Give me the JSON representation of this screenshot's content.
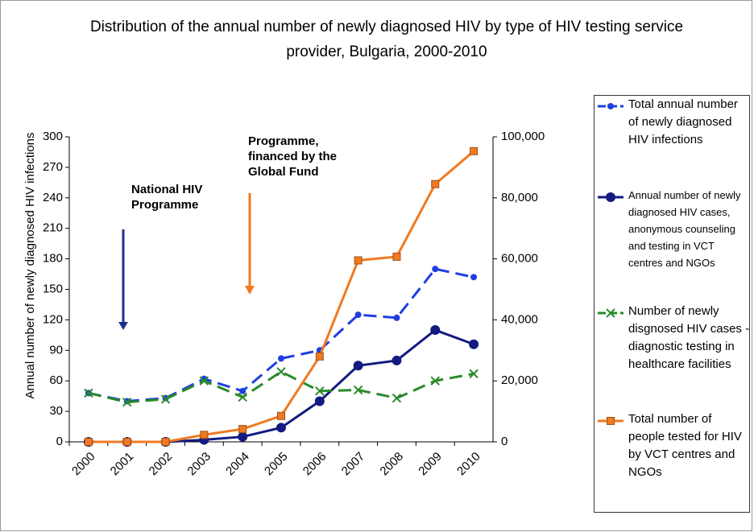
{
  "chart_data": {
    "type": "line",
    "title": "Distribution of the annual number of newly diagnosed HIV  by type of HIV testing service provider, Bulgaria, 2000-2010",
    "y_label": "Annual number of newly diagnosed HIV infections",
    "categories": [
      "2000",
      "2001",
      "2002",
      "2003",
      "2004",
      "2005",
      "2006",
      "2007",
      "2008",
      "2009",
      "2010"
    ],
    "ylim": [
      0,
      300
    ],
    "yticks": [
      0,
      30,
      60,
      90,
      120,
      150,
      180,
      210,
      240,
      270,
      300
    ],
    "y2lim": [
      0,
      100000
    ],
    "y2ticks": [
      0,
      {
        "value": 20000,
        "label": "20,000"
      },
      {
        "value": 40000,
        "label": "40,000"
      },
      {
        "value": 60000,
        "label": "60,000"
      },
      {
        "value": 80000,
        "label": "80,000"
      },
      {
        "value": 100000,
        "label": "100,000"
      }
    ],
    "annotations": [
      {
        "text": "National HIV Programme",
        "color": "#1f2f8f"
      },
      {
        "text": "Programme, financed by the Global Fund",
        "color": "#f07a20"
      }
    ],
    "series": [
      {
        "name": "Total annual number of newly diagnosed HIV infections",
        "color": "#1f3fe0",
        "marker": "circle",
        "dash": true,
        "values": [
          48,
          40,
          43,
          62,
          50,
          82,
          90,
          125,
          122,
          170,
          162
        ]
      },
      {
        "name": "Annual number of newly diagnosed HIV cases, anonymous counseling and testing in VCT centres and NGOs",
        "color": "#141a80",
        "marker": "circle",
        "dash": false,
        "values": [
          0,
          0,
          0,
          2,
          5,
          14,
          40,
          75,
          80,
          110,
          96
        ]
      },
      {
        "name": "Number of newly disgnosed HIV cases - diagnostic testing in healthcare facilities",
        "color": "#2a8a2a",
        "marker": "x",
        "dash": true,
        "values": [
          48,
          39,
          42,
          60,
          44,
          69,
          50,
          51,
          43,
          60,
          67
        ]
      },
      {
        "name": "Total number of people tested for HIV by VCT centres and NGOs",
        "color": "#f07a20",
        "marker": "square",
        "dash": false,
        "axis": "y2",
        "values": [
          0,
          0,
          0,
          2300,
          4200,
          8500,
          28000,
          59500,
          60700,
          84500,
          95300
        ]
      }
    ]
  }
}
